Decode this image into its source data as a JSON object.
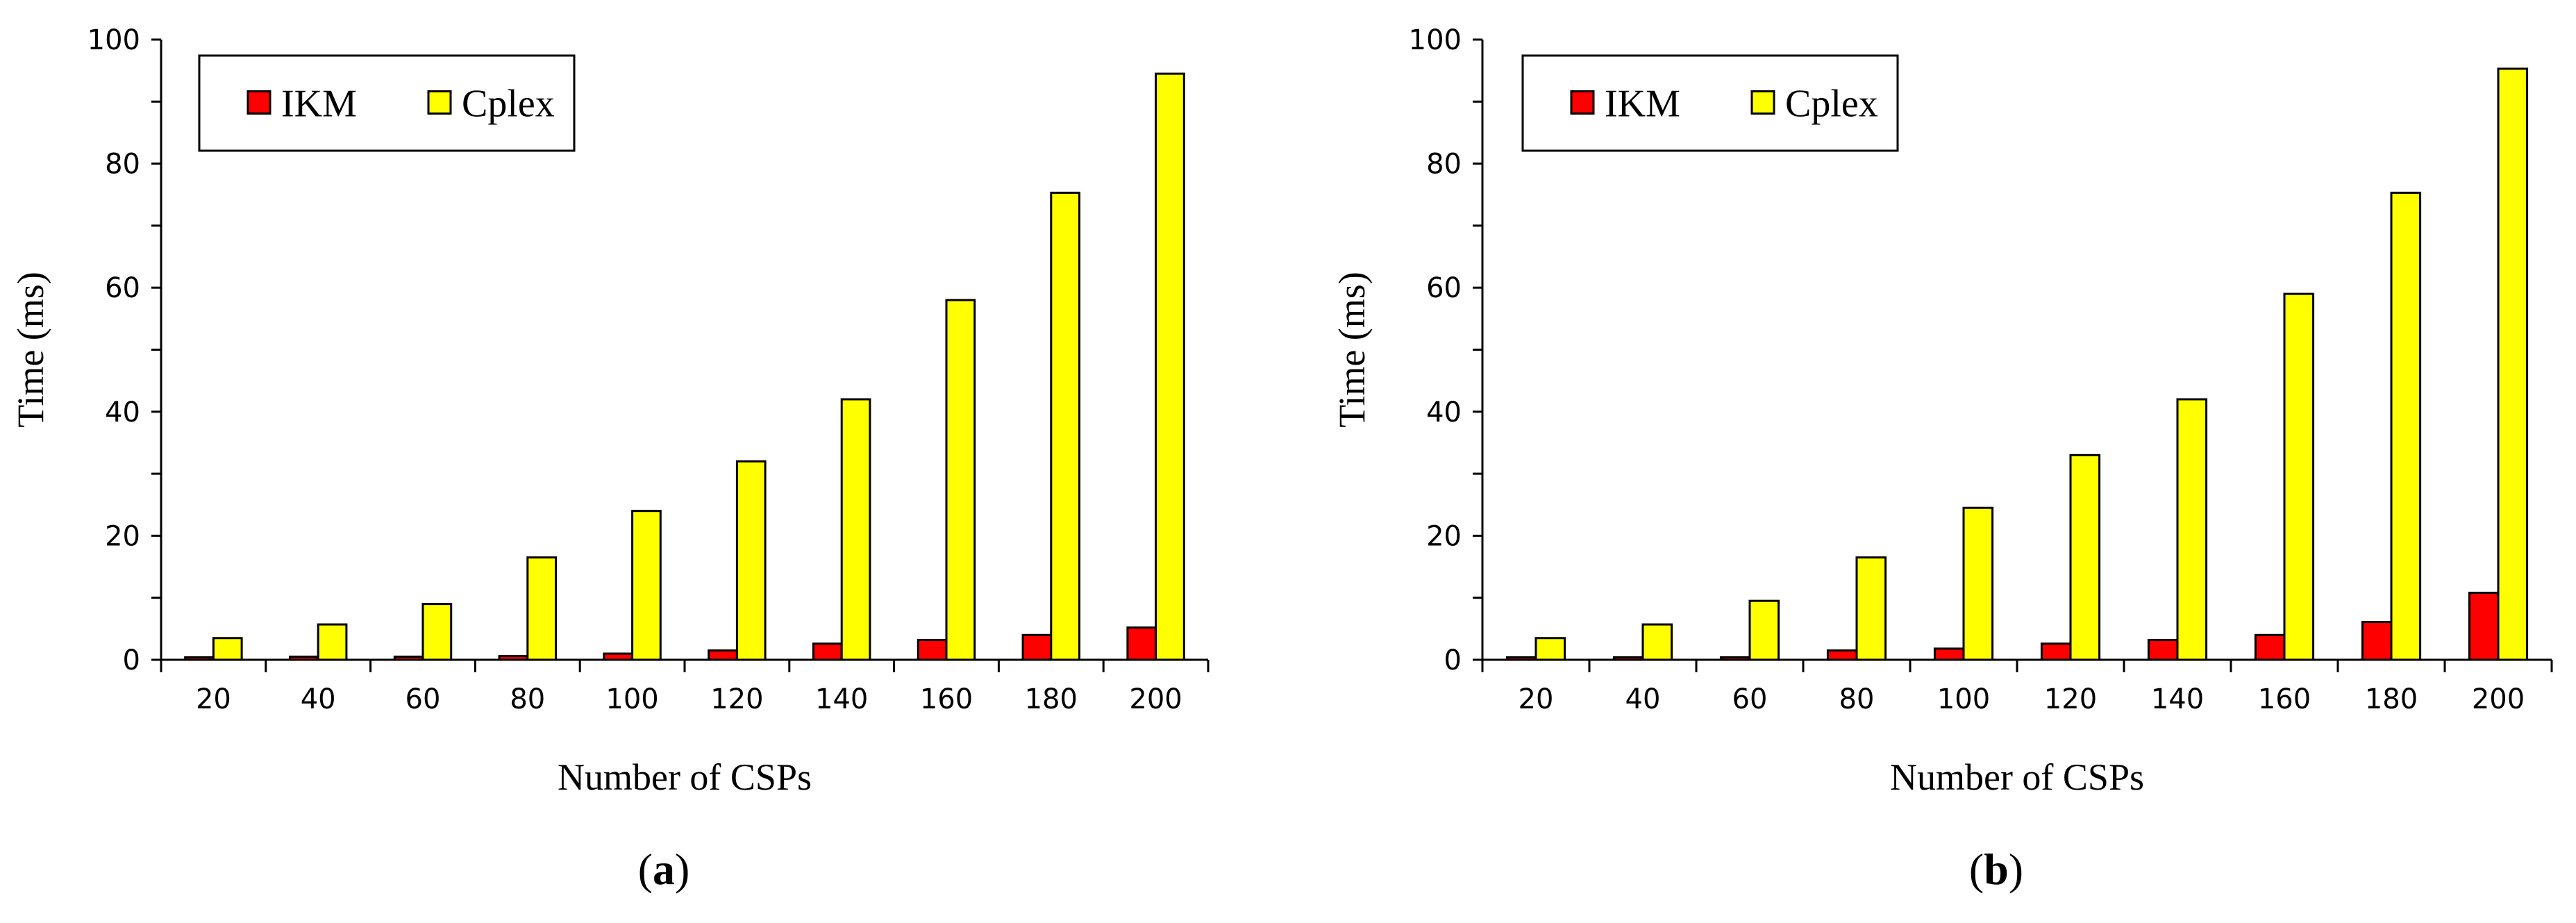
{
  "chart_data": [
    {
      "type": "bar",
      "panel_label": "a",
      "xlabel": "Number of CSPs",
      "ylabel": "Time (ms)",
      "ylim": [
        0,
        100
      ],
      "yticks": [
        0,
        20,
        40,
        60,
        80,
        100
      ],
      "categories": [
        "20",
        "40",
        "60",
        "80",
        "100",
        "120",
        "140",
        "160",
        "180",
        "200"
      ],
      "legend_position": "top-left",
      "grid": false,
      "series": [
        {
          "name": "IKM",
          "color": "#ff0000",
          "values": [
            0.4,
            0.5,
            0.5,
            0.6,
            1.0,
            1.5,
            2.6,
            3.2,
            4.0,
            5.2
          ]
        },
        {
          "name": "Cplex",
          "color": "#ffff00",
          "values": [
            3.5,
            5.7,
            9.0,
            16.5,
            24.0,
            32.0,
            42.0,
            58.0,
            75.3,
            94.5
          ]
        }
      ]
    },
    {
      "type": "bar",
      "panel_label": "b",
      "xlabel": "Number of CSPs",
      "ylabel": "Time (ms)",
      "ylim": [
        0,
        100
      ],
      "yticks": [
        0,
        20,
        40,
        60,
        80,
        100
      ],
      "categories": [
        "20",
        "40",
        "60",
        "80",
        "100",
        "120",
        "140",
        "160",
        "180",
        "200"
      ],
      "legend_position": "top-left",
      "grid": false,
      "series": [
        {
          "name": "IKM",
          "color": "#ff0000",
          "values": [
            0.4,
            0.4,
            0.4,
            1.5,
            1.8,
            2.6,
            3.2,
            4.0,
            6.1,
            10.8
          ]
        },
        {
          "name": "Cplex",
          "color": "#ffff00",
          "values": [
            3.5,
            5.7,
            9.5,
            16.5,
            24.5,
            33.0,
            42.0,
            59.0,
            75.3,
            95.3
          ]
        }
      ]
    }
  ]
}
